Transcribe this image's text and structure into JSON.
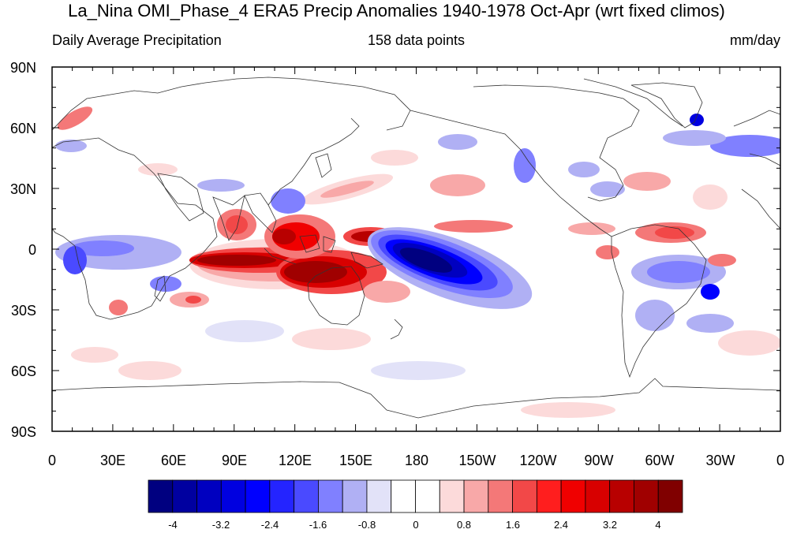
{
  "header": {
    "title": "La_Nina OMI_Phase_4 ERA5 Precip Anomalies 1940-1978 Oct-Apr (wrt fixed climos)",
    "left_label": "Daily Average Precipitation",
    "center_label": "158 data points",
    "right_label": "mm/day"
  },
  "map": {
    "lat_labels": [
      "90N",
      "60N",
      "30N",
      "0",
      "30S",
      "60S",
      "90S"
    ],
    "lon_labels": [
      "0",
      "30E",
      "60E",
      "90E",
      "120E",
      "150E",
      "180",
      "150W",
      "120W",
      "90W",
      "60W",
      "30W",
      "0"
    ],
    "land_color": "#ffffff",
    "coast_color": "#333333"
  },
  "colorbar": {
    "colors": [
      "#000080",
      "#0000a0",
      "#0000c0",
      "#0000e0",
      "#0000ff",
      "#2424ff",
      "#4a4aff",
      "#8080ff",
      "#b0b0f4",
      "#e2e2f8",
      "#ffffff",
      "#ffffff",
      "#fcdada",
      "#f8a8a8",
      "#f47878",
      "#f24848",
      "#ff1e1e",
      "#f00000",
      "#d80000",
      "#b80000",
      "#a00000",
      "#800000"
    ],
    "tick_labels": [
      "-4",
      "-3.2",
      "-2.4",
      "-1.6",
      "-0.8",
      "0",
      "0.8",
      "1.6",
      "2.4",
      "3.2",
      "4"
    ]
  },
  "chart_data": {
    "type": "heatmap",
    "title": "La_Nina OMI_Phase_4 ERA5 Precip Anomalies 1940-1978 Oct-Apr (wrt fixed climos)",
    "variable": "Daily Average Precipitation",
    "units": "mm/day",
    "n_points": 158,
    "x_range": [
      0,
      360
    ],
    "y_range": [
      -90,
      90
    ],
    "contour_levels": [
      -4.4,
      -4,
      -3.6,
      -3.2,
      -2.8,
      -2.4,
      -2,
      -1.6,
      -1.2,
      -0.8,
      -0.4,
      0,
      0.4,
      0.8,
      1.2,
      1.6,
      2,
      2.4,
      2.8,
      3.2,
      3.6,
      4,
      4.4
    ],
    "anomaly_features": [
      {
        "lon": 215,
        "lat": -8,
        "value": -4.4
      },
      {
        "lon": 200,
        "lat": -1,
        "value": -4.0
      },
      {
        "lon": 230,
        "lat": -20,
        "value": -2.4
      },
      {
        "lon": 150,
        "lat": -10,
        "value": 4.4
      },
      {
        "lon": 100,
        "lat": -5,
        "value": 4.0
      },
      {
        "lon": 130,
        "lat": 3,
        "value": 3.6
      },
      {
        "lon": 170,
        "lat": 5,
        "value": 4.0
      },
      {
        "lon": 250,
        "lat": 10,
        "value": 1.6
      },
      {
        "lon": 310,
        "lat": 5,
        "value": 2.0
      },
      {
        "lon": 320,
        "lat": 62,
        "value": -4.0
      },
      {
        "lon": 330,
        "lat": -20,
        "value": -2.4
      },
      {
        "lon": 20,
        "lat": -5,
        "value": -1.6
      },
      {
        "lon": 85,
        "lat": 15,
        "value": 2.0
      }
    ]
  }
}
